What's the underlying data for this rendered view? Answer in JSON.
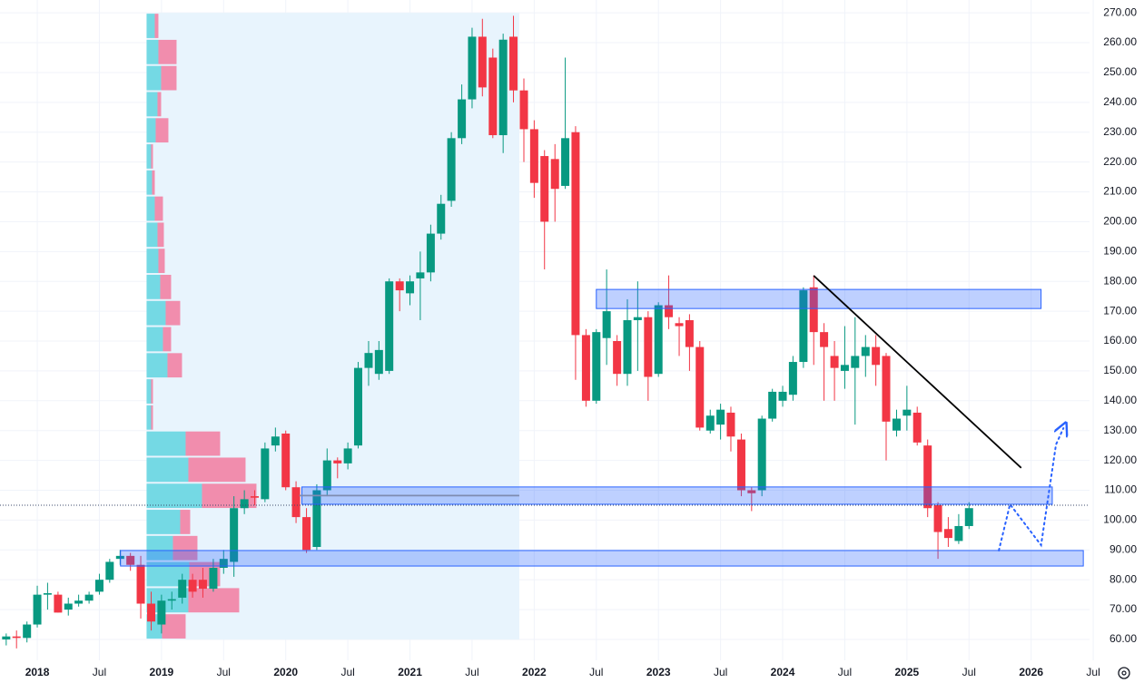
{
  "chart_data": {
    "type": "candlestick",
    "x": [
      2017.75,
      2017.833,
      2017.917,
      2018.0,
      2018.083,
      2018.167,
      2018.25,
      2018.333,
      2018.417,
      2018.5,
      2018.583,
      2018.667,
      2018.75,
      2018.833,
      2018.917,
      2019.0,
      2019.083,
      2019.167,
      2019.25,
      2019.333,
      2019.417,
      2019.5,
      2019.583,
      2019.667,
      2019.75,
      2019.833,
      2019.917,
      2020.0,
      2020.083,
      2020.167,
      2020.25,
      2020.333,
      2020.417,
      2020.5,
      2020.583,
      2020.667,
      2020.75,
      2020.833,
      2020.917,
      2021.0,
      2021.083,
      2021.167,
      2021.25,
      2021.333,
      2021.417,
      2021.5,
      2021.583,
      2021.667,
      2021.75,
      2021.833,
      2021.917,
      2022.0,
      2022.083,
      2022.167,
      2022.25,
      2022.333,
      2022.417,
      2022.5,
      2022.583,
      2022.667,
      2022.75,
      2022.833,
      2022.917,
      2023.0,
      2023.083,
      2023.167,
      2023.25,
      2023.333,
      2023.417,
      2023.5,
      2023.583,
      2023.667,
      2023.75,
      2023.833,
      2023.917,
      2024.0,
      2024.083,
      2024.167,
      2024.25,
      2024.333,
      2024.417,
      2024.5,
      2024.583,
      2024.667,
      2024.75,
      2024.833,
      2024.917,
      2025.0,
      2025.083,
      2025.167,
      2025.25,
      2025.333,
      2025.417,
      2025.5
    ],
    "open": [
      60,
      61,
      60.5,
      65,
      75,
      75,
      70,
      72,
      73,
      76,
      80,
      87,
      88,
      85,
      72,
      65,
      73,
      74,
      80,
      80,
      77,
      84,
      86,
      104,
      108,
      107,
      125,
      129,
      111,
      101,
      91,
      110,
      120,
      119,
      125,
      151,
      149,
      150,
      180,
      176,
      181,
      183,
      196,
      207,
      228,
      241,
      262,
      255,
      229,
      262,
      244,
      231,
      222,
      221,
      212,
      230,
      162,
      140,
      161,
      160,
      149,
      167,
      168,
      149,
      172,
      166,
      167,
      158,
      130,
      132,
      136,
      127,
      110,
      110,
      134,
      140,
      142,
      153,
      178,
      163,
      155,
      150,
      151,
      155,
      158,
      155,
      130,
      135,
      136,
      125,
      105,
      97,
      93,
      98
    ],
    "high": [
      62,
      63,
      66,
      78,
      79,
      76,
      74,
      75,
      76,
      82,
      87,
      90,
      89,
      88,
      76,
      75,
      76,
      82,
      82,
      84,
      87,
      90,
      108,
      110,
      110,
      126,
      131,
      130,
      113,
      104,
      112,
      124,
      121,
      126,
      153,
      160,
      160,
      181,
      181,
      182,
      190,
      199,
      209,
      230,
      246,
      265,
      268,
      258,
      263,
      269,
      248,
      234,
      224,
      226,
      255,
      232,
      164,
      164,
      184,
      162,
      174,
      180,
      170,
      173,
      182,
      168,
      169,
      160,
      137,
      139,
      138,
      129,
      111,
      135,
      144,
      145,
      155,
      178,
      182,
      166,
      160,
      165,
      168,
      162,
      162,
      156,
      137,
      145,
      138,
      127,
      106,
      101,
      102,
      106
    ],
    "low": [
      58,
      57,
      59,
      64,
      70,
      69,
      68,
      71,
      72,
      75,
      79,
      85,
      83,
      67,
      63,
      62,
      70,
      72,
      74,
      74,
      76,
      82,
      81,
      102,
      105,
      106,
      123,
      110,
      99,
      89,
      90,
      108,
      114,
      117,
      124,
      145,
      147,
      149,
      170,
      172,
      167,
      180,
      194,
      205,
      226,
      238,
      242,
      228,
      223,
      240,
      220,
      208,
      184,
      200,
      211,
      147,
      138,
      139,
      152,
      145,
      145,
      150,
      140,
      148,
      164,
      155,
      150,
      130,
      129,
      127,
      123,
      108,
      103,
      108,
      133,
      138,
      140,
      151,
      152,
      140,
      140,
      144,
      132,
      148,
      145,
      120,
      128,
      130,
      125,
      101,
      87,
      91,
      92,
      97
    ],
    "close": [
      61,
      60.5,
      65,
      75,
      75.5,
      69,
      72,
      73,
      75,
      80,
      86,
      88,
      85,
      72,
      66,
      73,
      73.5,
      80,
      76,
      77,
      84,
      87,
      104,
      107,
      107.5,
      124,
      128,
      111,
      101,
      90,
      110,
      120,
      119,
      124,
      151,
      156,
      157,
      180,
      177,
      180,
      183,
      196,
      206,
      228,
      241,
      262,
      245,
      229,
      261,
      244,
      231,
      213,
      200,
      211,
      228,
      162,
      140,
      163,
      170,
      149,
      167,
      168,
      148,
      172,
      168,
      165,
      158,
      131,
      135,
      137,
      128,
      110,
      109,
      134,
      143,
      143,
      153,
      177,
      163,
      158,
      151,
      152,
      155,
      158,
      152,
      133,
      134,
      137,
      126,
      104,
      96,
      94,
      98,
      104
    ],
    "up_color": "#089981",
    "down_color": "#f23645",
    "xlim": [
      2017.7,
      2026.47
    ],
    "ylim": [
      53,
      274.3
    ],
    "xticks": [
      2018,
      {
        "value": 2018.5,
        "label": "Jul"
      },
      2019,
      {
        "value": 2019.5,
        "label": "Jul"
      },
      2020,
      {
        "value": 2020.5,
        "label": "Jul"
      },
      2021,
      {
        "value": 2021.5,
        "label": "Jul"
      },
      2022,
      {
        "value": 2022.5,
        "label": "Jul"
      },
      2023,
      {
        "value": 2023.5,
        "label": "Jul"
      },
      2024,
      {
        "value": 2024.5,
        "label": "Jul"
      },
      2025,
      {
        "value": 2025.5,
        "label": "Jul"
      },
      2026,
      {
        "value": 2026.5,
        "label": "Jul"
      }
    ],
    "yticks": [
      {
        "value": 60,
        "label": "60.00"
      },
      {
        "value": 70,
        "label": "70.00"
      },
      {
        "value": 80,
        "label": "80.00"
      },
      {
        "value": 90,
        "label": "90.00"
      },
      {
        "value": 100,
        "label": "100.00"
      },
      {
        "value": 110,
        "label": "110.00"
      },
      {
        "value": 120,
        "label": "120.00"
      },
      {
        "value": 130,
        "label": "130.00"
      },
      {
        "value": 140,
        "label": "140.00"
      },
      {
        "value": 150,
        "label": "150.00"
      },
      {
        "value": 160,
        "label": "160.00"
      },
      {
        "value": 170,
        "label": "170.00"
      },
      {
        "value": 180,
        "label": "180.00"
      },
      {
        "value": 190,
        "label": "190.00"
      },
      {
        "value": 200,
        "label": "200.00"
      },
      {
        "value": 210,
        "label": "210.00"
      },
      {
        "value": 220,
        "label": "220.00"
      },
      {
        "value": 230,
        "label": "230.00"
      },
      {
        "value": 240,
        "label": "240.00"
      },
      {
        "value": 250,
        "label": "250.00"
      },
      {
        "value": 260,
        "label": "260.00"
      },
      {
        "value": 270,
        "label": "270.00"
      }
    ],
    "grid": true,
    "last_price": 105,
    "shaded": {
      "x": [
        2018.88,
        2021.88
      ],
      "y": [
        60,
        270
      ],
      "color": "#e8f4fd"
    },
    "volume_profile": {
      "x": 2018.88,
      "bins": [
        60,
        68.75,
        77.5,
        86.25,
        95,
        103.75,
        112.5,
        121.25,
        130,
        138.75,
        147.5,
        156.25,
        165,
        173.75,
        182.5,
        191.25,
        200,
        208.75,
        217.5,
        226.25,
        235,
        243.75,
        252.5,
        261.25,
        270
      ],
      "up": [
        17,
        46,
        47,
        29,
        37,
        61,
        46,
        43,
        5,
        5,
        23,
        18,
        21,
        15,
        13,
        12,
        9,
        6,
        5,
        10,
        12,
        16,
        13,
        9
      ],
      "down": [
        26,
        56,
        34,
        27,
        11,
        60,
        63,
        38,
        2,
        2,
        16,
        9,
        16,
        12,
        7,
        7,
        9,
        3,
        2,
        14,
        4,
        17,
        20,
        4
      ],
      "up_color": "#5fd3df",
      "down_color": "#f27a9f"
    },
    "zones": [
      {
        "x": [
          2022.5,
          2026.08
        ],
        "y": [
          170.9,
          177.3
        ]
      },
      {
        "x": [
          2020.13,
          2026.17
        ],
        "y": [
          105.3,
          111.1
        ]
      },
      {
        "x": [
          2018.67,
          2026.42
        ],
        "y": [
          84.6,
          89.8
        ]
      }
    ],
    "zone_color": "#2962ff",
    "lines": [
      {
        "x": [
          2020.11,
          2021.88
        ],
        "y": [
          108.2,
          108.2
        ],
        "color": "#7e8bb0",
        "dash": false
      },
      {
        "x": [
          2024.25,
          2025.92
        ],
        "y": [
          181.9,
          117.5
        ],
        "color": "#000000",
        "dash": false
      },
      {
        "x": [
          2025.74,
          2025.83,
          2026.08,
          2026.2,
          2026.26
        ],
        "y": [
          89.8,
          105.3,
          91.6,
          125.3,
          130.8
        ],
        "color": "#2962ff",
        "dash": true
      }
    ]
  }
}
